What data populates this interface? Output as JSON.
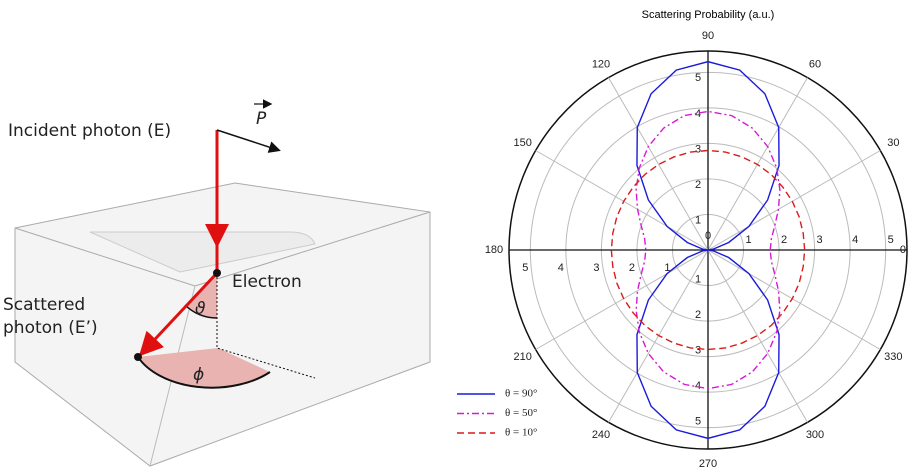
{
  "diagram": {
    "incident_photon": "Incident photon (E)",
    "momentum": "P",
    "electron": "Electron",
    "scattered_photon": [
      "Scattered",
      "photon (E’)"
    ],
    "polar_angle": "ϑ",
    "azimuth_angle": "ϕ"
  },
  "chart_data": {
    "type": "polar",
    "title": "Scattering Probability (a.u.)",
    "angles": [
      0,
      10,
      20,
      30,
      40,
      50,
      60,
      70,
      80,
      90,
      100,
      110,
      120,
      130,
      140,
      150,
      160,
      170,
      180,
      190,
      200,
      210,
      220,
      230,
      240,
      250,
      260,
      270,
      280,
      290,
      300,
      310,
      320,
      330,
      340,
      350
    ],
    "series": [
      {
        "name": "θ = 90°",
        "color": "#1a1adb",
        "linestyle": "solid",
        "values": [
          0,
          0.16,
          0.62,
          1.33,
          2.19,
          3.11,
          3.98,
          4.68,
          5.14,
          5.3,
          5.14,
          4.68,
          3.98,
          3.11,
          2.19,
          1.33,
          0.62,
          0.16,
          0,
          0.16,
          0.62,
          1.33,
          2.19,
          3.11,
          3.98,
          4.68,
          5.14,
          5.3,
          5.14,
          4.68,
          3.98,
          3.11,
          2.19,
          1.33,
          0.62,
          0.16
        ]
      },
      {
        "name": "θ = 50°",
        "color": "#d61ad6",
        "linestyle": "dashdot",
        "values": [
          1.75,
          1.81,
          2.0,
          2.29,
          2.64,
          3.01,
          3.36,
          3.65,
          3.84,
          3.9,
          3.84,
          3.65,
          3.36,
          3.01,
          2.64,
          2.29,
          2.0,
          1.81,
          1.75,
          1.81,
          2.0,
          2.29,
          2.64,
          3.01,
          3.36,
          3.65,
          3.84,
          3.9,
          3.84,
          3.65,
          3.36,
          3.01,
          2.64,
          2.29,
          2.0,
          1.81
        ]
      },
      {
        "name": "θ = 10°",
        "color": "#d91c1c",
        "linestyle": "dashed",
        "values": [
          2.72,
          2.72,
          2.73,
          2.74,
          2.75,
          2.77,
          2.78,
          2.79,
          2.8,
          2.8,
          2.8,
          2.79,
          2.78,
          2.77,
          2.75,
          2.74,
          2.73,
          2.72,
          2.72,
          2.72,
          2.73,
          2.74,
          2.75,
          2.77,
          2.78,
          2.79,
          2.8,
          2.8,
          2.8,
          2.79,
          2.78,
          2.77,
          2.75,
          2.74,
          2.73,
          2.72
        ]
      }
    ],
    "rlim": [
      0,
      5.6
    ],
    "rticks": [
      0,
      1,
      2,
      3,
      4,
      5
    ],
    "angle_ticks": [
      0,
      30,
      60,
      90,
      120,
      150,
      180,
      210,
      240,
      270,
      300,
      330
    ],
    "grid": true,
    "legend": "lower left"
  }
}
